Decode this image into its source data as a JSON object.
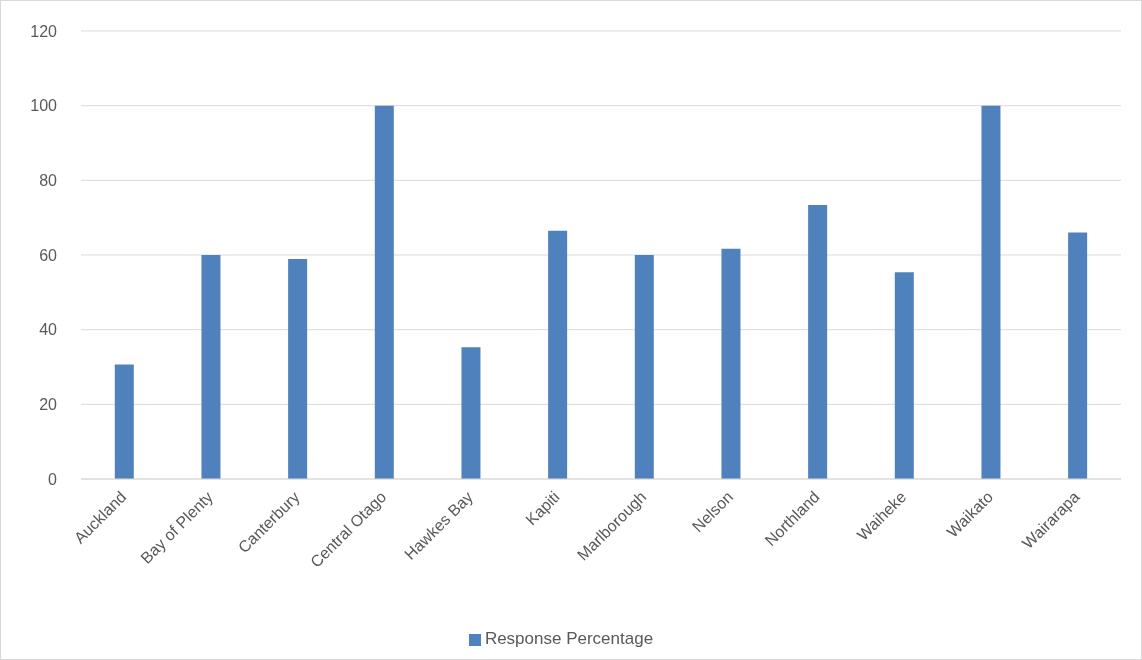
{
  "chart_data": {
    "type": "bar",
    "categories": [
      "Auckland",
      "Bay of Plenty",
      "Canterbury",
      "Central Otago",
      "Hawkes Bay",
      "Kapiti",
      "Marlborough",
      "Nelson",
      "Northland",
      "Waiheke",
      "Waikato",
      "Wairarapa"
    ],
    "series": [
      {
        "name": "Response Percentage",
        "color": "#4f81bd",
        "values": [
          30.7,
          60,
          58.9,
          100,
          35.3,
          66.5,
          60,
          61.7,
          73.4,
          55.4,
          100,
          66
        ]
      }
    ],
    "ylim": [
      0,
      120
    ],
    "yticks": [
      0,
      20,
      40,
      60,
      80,
      100,
      120
    ],
    "grid": "y",
    "legend": "bottom"
  }
}
